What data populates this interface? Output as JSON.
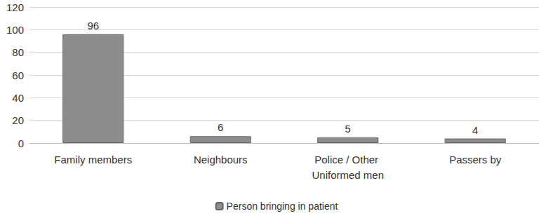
{
  "chart_data": {
    "type": "bar",
    "categories": [
      "Family members",
      "Neighbours",
      "Police / Other Uniformed men",
      "Passers by"
    ],
    "series": [
      {
        "name": "Person bringing in patient",
        "color": "#8c8c8c",
        "values": [
          96,
          6,
          5,
          4
        ]
      }
    ],
    "ylim": [
      0,
      120
    ],
    "yticks": [
      0,
      20,
      40,
      60,
      80,
      100,
      120
    ],
    "grid": true,
    "legend": "bottom",
    "data_labels": true
  }
}
